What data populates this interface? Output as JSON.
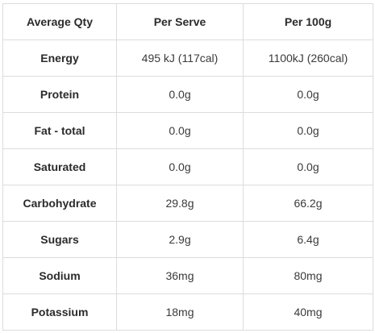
{
  "table": {
    "header": [
      "Average Qty",
      "Per Serve",
      "Per 100g"
    ],
    "rows": [
      [
        "Energy",
        "495 kJ (117cal)",
        "1100kJ (260cal)"
      ],
      [
        "Protein",
        "0.0g",
        "0.0g"
      ],
      [
        "Fat - total",
        "0.0g",
        "0.0g"
      ],
      [
        "Saturated",
        "0.0g",
        "0.0g"
      ],
      [
        "Carbohydrate",
        "29.8g",
        "66.2g"
      ],
      [
        "Sugars",
        "2.9g",
        "6.4g"
      ],
      [
        "Sodium",
        "36mg",
        "80mg"
      ],
      [
        "Potassium",
        "18mg",
        "40mg"
      ]
    ]
  }
}
